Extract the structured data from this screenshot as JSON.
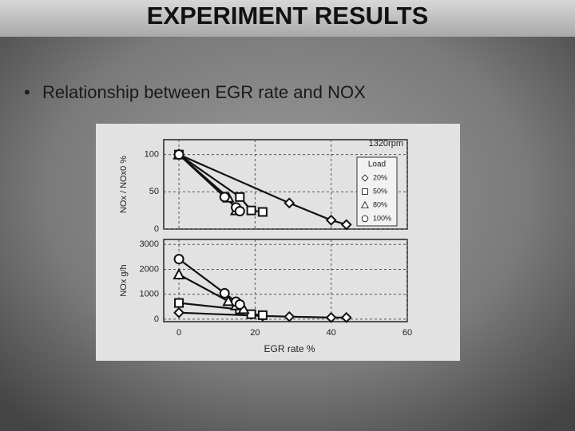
{
  "slide": {
    "title": "EXPERIMENT RESULTS",
    "bullet": "Relationship between EGR rate and NOX"
  },
  "chart_data": [
    {
      "type": "line",
      "ylabel": "NOx / NOx0 %",
      "annotation": "1320rpm",
      "legend_title": "Load",
      "legend": "right",
      "xlim": [
        -4,
        60
      ],
      "xticks": [
        0,
        20,
        40,
        60
      ],
      "xtick_labels": false,
      "ylim": [
        0,
        120
      ],
      "yticks": [
        0,
        50,
        100
      ],
      "grid": true,
      "series": [
        {
          "name": "20%",
          "color": "#111111",
          "marker": "diamond",
          "x": [
            0,
            29,
            40,
            44
          ],
          "values": [
            100,
            35,
            12,
            6
          ]
        },
        {
          "name": "50%",
          "color": "#111111",
          "marker": "square",
          "x": [
            0,
            16,
            19,
            22
          ],
          "values": [
            100,
            43,
            25,
            23
          ]
        },
        {
          "name": "80%",
          "color": "#111111",
          "marker": "triangle",
          "x": [
            0,
            13,
            15
          ],
          "values": [
            100,
            42,
            25
          ]
        },
        {
          "name": "100%",
          "color": "#111111",
          "marker": "circle",
          "x": [
            0,
            12,
            15,
            16
          ],
          "values": [
            100,
            43,
            29,
            24
          ]
        }
      ]
    },
    {
      "type": "line",
      "ylabel": "NOx g/h",
      "xlabel": "EGR rate %",
      "xlim": [
        -4,
        60
      ],
      "xticks": [
        0,
        20,
        40,
        60
      ],
      "xtick_labels": true,
      "ylim": [
        -100,
        3200
      ],
      "yticks": [
        0,
        1000,
        2000,
        3000
      ],
      "grid": true,
      "series": [
        {
          "name": "20%",
          "color": "#111111",
          "marker": "diamond",
          "x": [
            0,
            22,
            29,
            40,
            44
          ],
          "values": [
            260,
            130,
            100,
            65,
            65
          ]
        },
        {
          "name": "50%",
          "color": "#111111",
          "marker": "square",
          "x": [
            0,
            16,
            19,
            22
          ],
          "values": [
            650,
            390,
            200,
            160
          ]
        },
        {
          "name": "80%",
          "color": "#111111",
          "marker": "triangle",
          "x": [
            0,
            13,
            15,
            17
          ],
          "values": [
            1790,
            720,
            550,
            400
          ]
        },
        {
          "name": "100%",
          "color": "#111111",
          "marker": "circle",
          "x": [
            0,
            12,
            15,
            16
          ],
          "values": [
            2410,
            1040,
            700,
            590
          ]
        }
      ]
    }
  ]
}
